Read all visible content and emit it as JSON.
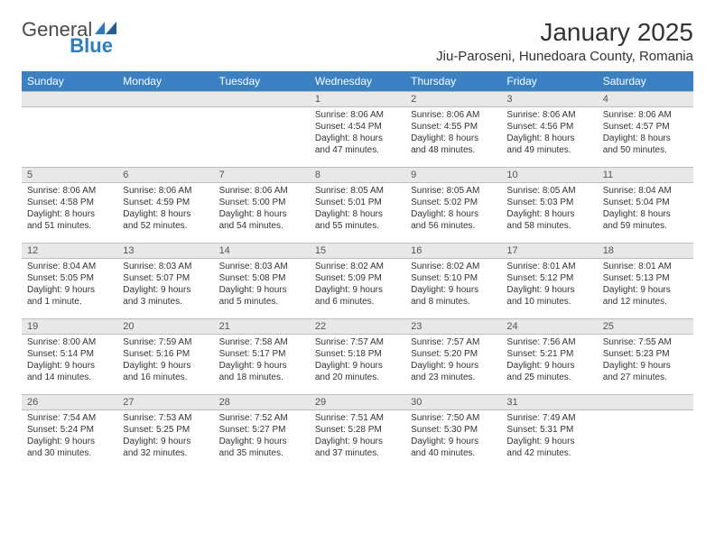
{
  "brand": {
    "text1": "General",
    "text2": "Blue"
  },
  "title": "January 2025",
  "location": "Jiu-Paroseni, Hunedoara County, Romania",
  "colors": {
    "header_bg": "#3a81c4",
    "header_text": "#ffffff",
    "daynum_bg": "#e8e8e8",
    "daynum_border": "#bdbdbd",
    "text": "#333333",
    "brand_gray": "#4a4a4a",
    "brand_blue": "#2b7cc4"
  },
  "daysOfWeek": [
    "Sunday",
    "Monday",
    "Tuesday",
    "Wednesday",
    "Thursday",
    "Friday",
    "Saturday"
  ],
  "weeks": [
    [
      null,
      null,
      null,
      {
        "d": "1",
        "sr": "8:06 AM",
        "ss": "4:54 PM",
        "dl": "8 hours and 47 minutes."
      },
      {
        "d": "2",
        "sr": "8:06 AM",
        "ss": "4:55 PM",
        "dl": "8 hours and 48 minutes."
      },
      {
        "d": "3",
        "sr": "8:06 AM",
        "ss": "4:56 PM",
        "dl": "8 hours and 49 minutes."
      },
      {
        "d": "4",
        "sr": "8:06 AM",
        "ss": "4:57 PM",
        "dl": "8 hours and 50 minutes."
      }
    ],
    [
      {
        "d": "5",
        "sr": "8:06 AM",
        "ss": "4:58 PM",
        "dl": "8 hours and 51 minutes."
      },
      {
        "d": "6",
        "sr": "8:06 AM",
        "ss": "4:59 PM",
        "dl": "8 hours and 52 minutes."
      },
      {
        "d": "7",
        "sr": "8:06 AM",
        "ss": "5:00 PM",
        "dl": "8 hours and 54 minutes."
      },
      {
        "d": "8",
        "sr": "8:05 AM",
        "ss": "5:01 PM",
        "dl": "8 hours and 55 minutes."
      },
      {
        "d": "9",
        "sr": "8:05 AM",
        "ss": "5:02 PM",
        "dl": "8 hours and 56 minutes."
      },
      {
        "d": "10",
        "sr": "8:05 AM",
        "ss": "5:03 PM",
        "dl": "8 hours and 58 minutes."
      },
      {
        "d": "11",
        "sr": "8:04 AM",
        "ss": "5:04 PM",
        "dl": "8 hours and 59 minutes."
      }
    ],
    [
      {
        "d": "12",
        "sr": "8:04 AM",
        "ss": "5:05 PM",
        "dl": "9 hours and 1 minute."
      },
      {
        "d": "13",
        "sr": "8:03 AM",
        "ss": "5:07 PM",
        "dl": "9 hours and 3 minutes."
      },
      {
        "d": "14",
        "sr": "8:03 AM",
        "ss": "5:08 PM",
        "dl": "9 hours and 5 minutes."
      },
      {
        "d": "15",
        "sr": "8:02 AM",
        "ss": "5:09 PM",
        "dl": "9 hours and 6 minutes."
      },
      {
        "d": "16",
        "sr": "8:02 AM",
        "ss": "5:10 PM",
        "dl": "9 hours and 8 minutes."
      },
      {
        "d": "17",
        "sr": "8:01 AM",
        "ss": "5:12 PM",
        "dl": "9 hours and 10 minutes."
      },
      {
        "d": "18",
        "sr": "8:01 AM",
        "ss": "5:13 PM",
        "dl": "9 hours and 12 minutes."
      }
    ],
    [
      {
        "d": "19",
        "sr": "8:00 AM",
        "ss": "5:14 PM",
        "dl": "9 hours and 14 minutes."
      },
      {
        "d": "20",
        "sr": "7:59 AM",
        "ss": "5:16 PM",
        "dl": "9 hours and 16 minutes."
      },
      {
        "d": "21",
        "sr": "7:58 AM",
        "ss": "5:17 PM",
        "dl": "9 hours and 18 minutes."
      },
      {
        "d": "22",
        "sr": "7:57 AM",
        "ss": "5:18 PM",
        "dl": "9 hours and 20 minutes."
      },
      {
        "d": "23",
        "sr": "7:57 AM",
        "ss": "5:20 PM",
        "dl": "9 hours and 23 minutes."
      },
      {
        "d": "24",
        "sr": "7:56 AM",
        "ss": "5:21 PM",
        "dl": "9 hours and 25 minutes."
      },
      {
        "d": "25",
        "sr": "7:55 AM",
        "ss": "5:23 PM",
        "dl": "9 hours and 27 minutes."
      }
    ],
    [
      {
        "d": "26",
        "sr": "7:54 AM",
        "ss": "5:24 PM",
        "dl": "9 hours and 30 minutes."
      },
      {
        "d": "27",
        "sr": "7:53 AM",
        "ss": "5:25 PM",
        "dl": "9 hours and 32 minutes."
      },
      {
        "d": "28",
        "sr": "7:52 AM",
        "ss": "5:27 PM",
        "dl": "9 hours and 35 minutes."
      },
      {
        "d": "29",
        "sr": "7:51 AM",
        "ss": "5:28 PM",
        "dl": "9 hours and 37 minutes."
      },
      {
        "d": "30",
        "sr": "7:50 AM",
        "ss": "5:30 PM",
        "dl": "9 hours and 40 minutes."
      },
      {
        "d": "31",
        "sr": "7:49 AM",
        "ss": "5:31 PM",
        "dl": "9 hours and 42 minutes."
      },
      null
    ]
  ],
  "labels": {
    "sunrise": "Sunrise:",
    "sunset": "Sunset:",
    "daylight": "Daylight:"
  }
}
